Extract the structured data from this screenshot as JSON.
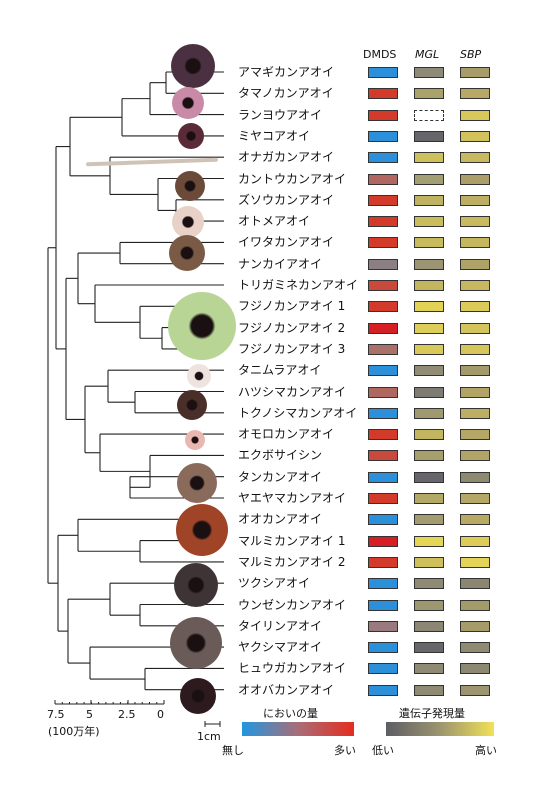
{
  "columns": {
    "dmds": "DMDS",
    "mgl": "MGL",
    "sbp": "SBP"
  },
  "species": [
    {
      "name": "アマギカンアオイ",
      "dmds": "#2b90d9",
      "mgl": "#8d8b78",
      "sbp": "#a89c6a"
    },
    {
      "name": "タマノカンアオイ",
      "dmds": "#d23a2a",
      "mgl": "#a9a36a",
      "sbp": "#b8a865"
    },
    {
      "name": "ランヨウアオイ",
      "dmds": "#d23a2a",
      "mgl": "missing",
      "sbp": "#d8c75b"
    },
    {
      "name": "ミヤコアオイ",
      "dmds": "#2b90d9",
      "mgl": "#66656a",
      "sbp": "#d1c25c"
    },
    {
      "name": "オナガカンアオイ",
      "dmds": "#2b90d9",
      "mgl": "#cdbf5c",
      "sbp": "#c8b860"
    },
    {
      "name": "カントウカンアオイ",
      "dmds": "#b0675f",
      "mgl": "#a49f72",
      "sbp": "#ab9e6b"
    },
    {
      "name": "ズソウカンアオイ",
      "dmds": "#d23a2a",
      "mgl": "#bfb362",
      "sbp": "#bcae63"
    },
    {
      "name": "オトメアオイ",
      "dmds": "#d23a2a",
      "mgl": "#cabd5d",
      "sbp": "#c9ba5f"
    },
    {
      "name": "イワタカンアオイ",
      "dmds": "#d23a2a",
      "mgl": "#c8bb5e",
      "sbp": "#c5b660"
    },
    {
      "name": "ナンカイアオイ",
      "dmds": "#8b7f84",
      "mgl": "#9b9573",
      "sbp": "#b0a367"
    },
    {
      "name": "トリガミネカンアオイ",
      "dmds": "#c94a3c",
      "mgl": "#c3b660",
      "sbp": "#c6b760"
    },
    {
      "name": "フジノカンアオイ 1",
      "dmds": "#d23a2a",
      "mgl": "#e2d357",
      "sbp": "#dccb59"
    },
    {
      "name": "フジノカンアオイ 2",
      "dmds": "#d61f24",
      "mgl": "#dcce58",
      "sbp": "#d3c45b"
    },
    {
      "name": "フジノカンアオイ 3",
      "dmds": "#a8716a",
      "mgl": "#d8c959",
      "sbp": "#d6c65a"
    },
    {
      "name": "タニムラアオイ",
      "dmds": "#2b90d9",
      "mgl": "#918c75",
      "sbp": "#a39a6c"
    },
    {
      "name": "ハツシマカンアオイ",
      "dmds": "#b0675f",
      "mgl": "#7d7b72",
      "sbp": "#b2a466"
    },
    {
      "name": "トクノシマカンアオイ",
      "dmds": "#2b90d9",
      "mgl": "#9f9971",
      "sbp": "#bcae63"
    },
    {
      "name": "オモロカンアオイ",
      "dmds": "#d23a2a",
      "mgl": "#c2b660",
      "sbp": "#b5a765"
    },
    {
      "name": "エクボサイシン",
      "dmds": "#c94a3c",
      "mgl": "#a8a06c",
      "sbp": "#b1a466"
    },
    {
      "name": "タンカンアオイ",
      "dmds": "#2b90d9",
      "mgl": "#67656b",
      "sbp": "#8e8a71"
    },
    {
      "name": "ヤエヤマカンアオイ",
      "dmds": "#d23a2a",
      "mgl": "#b3a967",
      "sbp": "#b5a765"
    },
    {
      "name": "オオカンアオイ",
      "dmds": "#2b90d9",
      "mgl": "#a29c70",
      "sbp": "#b8aa64"
    },
    {
      "name": "マルミカンアオイ 1",
      "dmds": "#d61f24",
      "mgl": "#e6d655",
      "sbp": "#ddcd58"
    },
    {
      "name": "マルミカンアオイ 2",
      "dmds": "#d23a2a",
      "mgl": "#cdc05c",
      "sbp": "#e4d457"
    },
    {
      "name": "ツクシアオイ",
      "dmds": "#2b90d9",
      "mgl": "#8e8a74",
      "sbp": "#8a8672"
    },
    {
      "name": "ウンゼンカンアオイ",
      "dmds": "#2b90d9",
      "mgl": "#9c9671",
      "sbp": "#a49b6b"
    },
    {
      "name": "タイリンアオイ",
      "dmds": "#9a7a7e",
      "mgl": "#8b8774",
      "sbp": "#a59c6a"
    },
    {
      "name": "ヤクシマアオイ",
      "dmds": "#2b90d9",
      "mgl": "#67666a",
      "sbp": "#8f8a72"
    },
    {
      "name": "ヒュウガカンアオイ",
      "dmds": "#2b90d9",
      "mgl": "#8e8a74",
      "sbp": "#8c8872"
    },
    {
      "name": "オオバカンアオイ",
      "dmds": "#2b90d9",
      "mgl": "#8e8a74",
      "sbp": "#9c956f"
    }
  ],
  "scale": {
    "ticks": [
      "7.5",
      "5",
      "2.5",
      "0"
    ],
    "unit": "(100万年)",
    "flower_scale": "1cm"
  },
  "legend_odor": {
    "title": "においの量",
    "low": "無し",
    "high": "多い",
    "colors": [
      "#2196e0",
      "#a86d78",
      "#e42d1f"
    ]
  },
  "legend_expr": {
    "title": "遺伝子発現量",
    "low": "低い",
    "high": "高い",
    "colors": [
      "#5e5d66",
      "#9c956e",
      "#f1e157"
    ]
  }
}
